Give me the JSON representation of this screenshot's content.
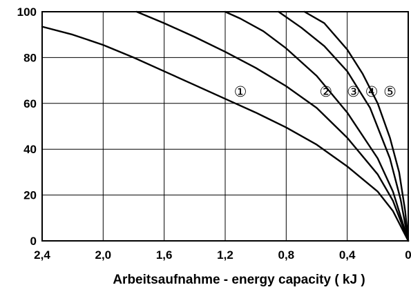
{
  "chart_data": {
    "type": "line",
    "title": "",
    "xlabel": "Arbeitsaufnahme - energy capacity ( kJ )",
    "ylabel": "",
    "x_reversed": true,
    "xlim": [
      2.4,
      0
    ],
    "ylim": [
      0,
      100
    ],
    "x_ticks": [
      {
        "value": 2.4,
        "label": "2,4"
      },
      {
        "value": 2.0,
        "label": "2,0"
      },
      {
        "value": 1.6,
        "label": "1,6"
      },
      {
        "value": 1.2,
        "label": "1,2"
      },
      {
        "value": 0.8,
        "label": "0,8"
      },
      {
        "value": 0.4,
        "label": "0,4"
      },
      {
        "value": 0.0,
        "label": "0"
      }
    ],
    "y_ticks": [
      {
        "value": 0,
        "label": "0"
      },
      {
        "value": 20,
        "label": "20"
      },
      {
        "value": 40,
        "label": "40"
      },
      {
        "value": 60,
        "label": "60"
      },
      {
        "value": 80,
        "label": "80"
      },
      {
        "value": 100,
        "label": "100"
      }
    ],
    "grid": true,
    "series": [
      {
        "marker_label": "①",
        "marker_at": {
          "x": 1.1,
          "y": 65
        },
        "points": [
          {
            "x": 2.4,
            "y": 93.5
          },
          {
            "x": 2.2,
            "y": 90
          },
          {
            "x": 2.0,
            "y": 85.5
          },
          {
            "x": 1.8,
            "y": 80
          },
          {
            "x": 1.6,
            "y": 74
          },
          {
            "x": 1.4,
            "y": 68
          },
          {
            "x": 1.2,
            "y": 62
          },
          {
            "x": 1.0,
            "y": 56
          },
          {
            "x": 0.8,
            "y": 49.5
          },
          {
            "x": 0.6,
            "y": 42
          },
          {
            "x": 0.4,
            "y": 32.5
          },
          {
            "x": 0.2,
            "y": 21.5
          },
          {
            "x": 0.1,
            "y": 13
          },
          {
            "x": 0.0,
            "y": 0
          }
        ]
      },
      {
        "marker_label": "②",
        "marker_at": {
          "x": 0.54,
          "y": 65
        },
        "points": [
          {
            "x": 1.78,
            "y": 100
          },
          {
            "x": 1.6,
            "y": 95
          },
          {
            "x": 1.4,
            "y": 89
          },
          {
            "x": 1.2,
            "y": 82.5
          },
          {
            "x": 1.0,
            "y": 75.5
          },
          {
            "x": 0.8,
            "y": 67.5
          },
          {
            "x": 0.6,
            "y": 58
          },
          {
            "x": 0.4,
            "y": 45
          },
          {
            "x": 0.2,
            "y": 29
          },
          {
            "x": 0.1,
            "y": 17.5
          },
          {
            "x": 0.0,
            "y": 0
          }
        ]
      },
      {
        "marker_label": "③",
        "marker_at": {
          "x": 0.36,
          "y": 65
        },
        "points": [
          {
            "x": 1.2,
            "y": 100
          },
          {
            "x": 1.1,
            "y": 97
          },
          {
            "x": 0.95,
            "y": 91.5
          },
          {
            "x": 0.8,
            "y": 84
          },
          {
            "x": 0.6,
            "y": 72
          },
          {
            "x": 0.4,
            "y": 56
          },
          {
            "x": 0.2,
            "y": 36
          },
          {
            "x": 0.1,
            "y": 21.5
          },
          {
            "x": 0.0,
            "y": 0
          }
        ]
      },
      {
        "marker_label": "④",
        "marker_at": {
          "x": 0.24,
          "y": 65
        },
        "points": [
          {
            "x": 0.85,
            "y": 100
          },
          {
            "x": 0.7,
            "y": 93
          },
          {
            "x": 0.55,
            "y": 85
          },
          {
            "x": 0.4,
            "y": 74
          },
          {
            "x": 0.25,
            "y": 58
          },
          {
            "x": 0.12,
            "y": 36
          },
          {
            "x": 0.05,
            "y": 18
          },
          {
            "x": 0.0,
            "y": 0
          }
        ]
      },
      {
        "marker_label": "⑤",
        "marker_at": {
          "x": 0.12,
          "y": 65
        },
        "points": [
          {
            "x": 0.68,
            "y": 100
          },
          {
            "x": 0.55,
            "y": 95
          },
          {
            "x": 0.4,
            "y": 83.5
          },
          {
            "x": 0.3,
            "y": 73
          },
          {
            "x": 0.2,
            "y": 60
          },
          {
            "x": 0.12,
            "y": 45
          },
          {
            "x": 0.06,
            "y": 30
          },
          {
            "x": 0.02,
            "y": 13
          },
          {
            "x": 0.0,
            "y": 0
          }
        ]
      }
    ]
  }
}
